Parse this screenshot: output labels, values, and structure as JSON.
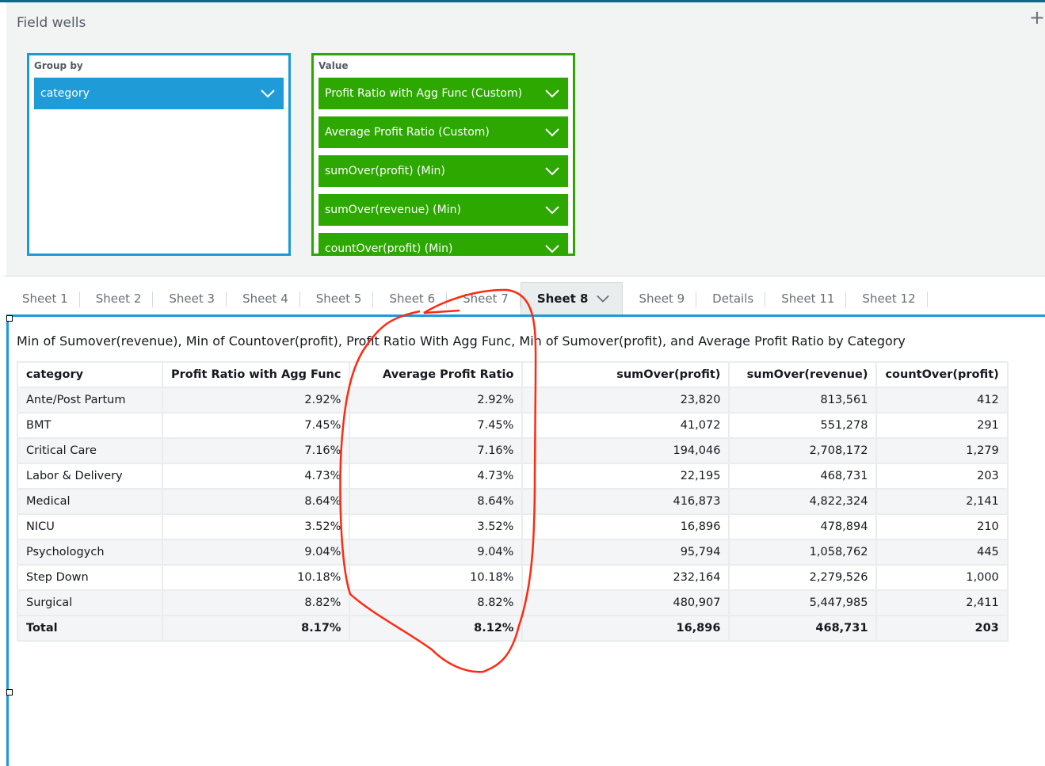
{
  "field_wells": {
    "title": "Field wells",
    "group_by": {
      "label": "Group by",
      "fields": [
        "category"
      ]
    },
    "value": {
      "label": "Value",
      "fields": [
        "Profit Ratio with Agg Func (Custom)",
        "Average Profit Ratio (Custom)",
        "sumOver(profit) (Min)",
        "sumOver(revenue) (Min)",
        "countOver(profit) (Min)"
      ]
    }
  },
  "tabs": [
    "Sheet 1",
    "Sheet 2",
    "Sheet 3",
    "Sheet 4",
    "Sheet 5",
    "Sheet 6",
    "Sheet 7",
    "Sheet 8",
    "Sheet 9",
    "Details",
    "Sheet 11",
    "Sheet 12"
  ],
  "active_tab": "Sheet 8",
  "add_tab": "+",
  "visual": {
    "title": "Min of Sumover(revenue), Min of Countover(profit), Profit Ratio With Agg Func, Min of Sumover(profit), and Average Profit Ratio by Category",
    "columns": [
      "category",
      "Profit Ratio with Agg Func",
      "Average Profit Ratio",
      "sumOver(profit)",
      "sumOver(revenue)",
      "countOver(profit)"
    ],
    "rows": [
      [
        "Ante/Post Partum",
        "2.92%",
        "2.92%",
        "23,820",
        "813,561",
        "412"
      ],
      [
        "BMT",
        "7.45%",
        "7.45%",
        "41,072",
        "551,278",
        "291"
      ],
      [
        "Critical Care",
        "7.16%",
        "7.16%",
        "194,046",
        "2,708,172",
        "1,279"
      ],
      [
        "Labor & Delivery",
        "4.73%",
        "4.73%",
        "22,195",
        "468,731",
        "203"
      ],
      [
        "Medical",
        "8.64%",
        "8.64%",
        "416,873",
        "4,822,324",
        "2,141"
      ],
      [
        "NICU",
        "3.52%",
        "3.52%",
        "16,896",
        "478,894",
        "210"
      ],
      [
        "Psychologych",
        "9.04%",
        "9.04%",
        "95,794",
        "1,058,762",
        "445"
      ],
      [
        "Step Down",
        "10.18%",
        "10.18%",
        "232,164",
        "2,279,526",
        "1,000"
      ],
      [
        "Surgical",
        "8.82%",
        "8.82%",
        "480,907",
        "5,447,985",
        "2,411"
      ]
    ],
    "total": [
      "Total",
      "8.17%",
      "8.12%",
      "16,896",
      "468,731",
      "203"
    ]
  },
  "colors": {
    "group_well": "#1f9bd8",
    "value_well": "#2ca800",
    "annotation": "#ff2a10"
  }
}
